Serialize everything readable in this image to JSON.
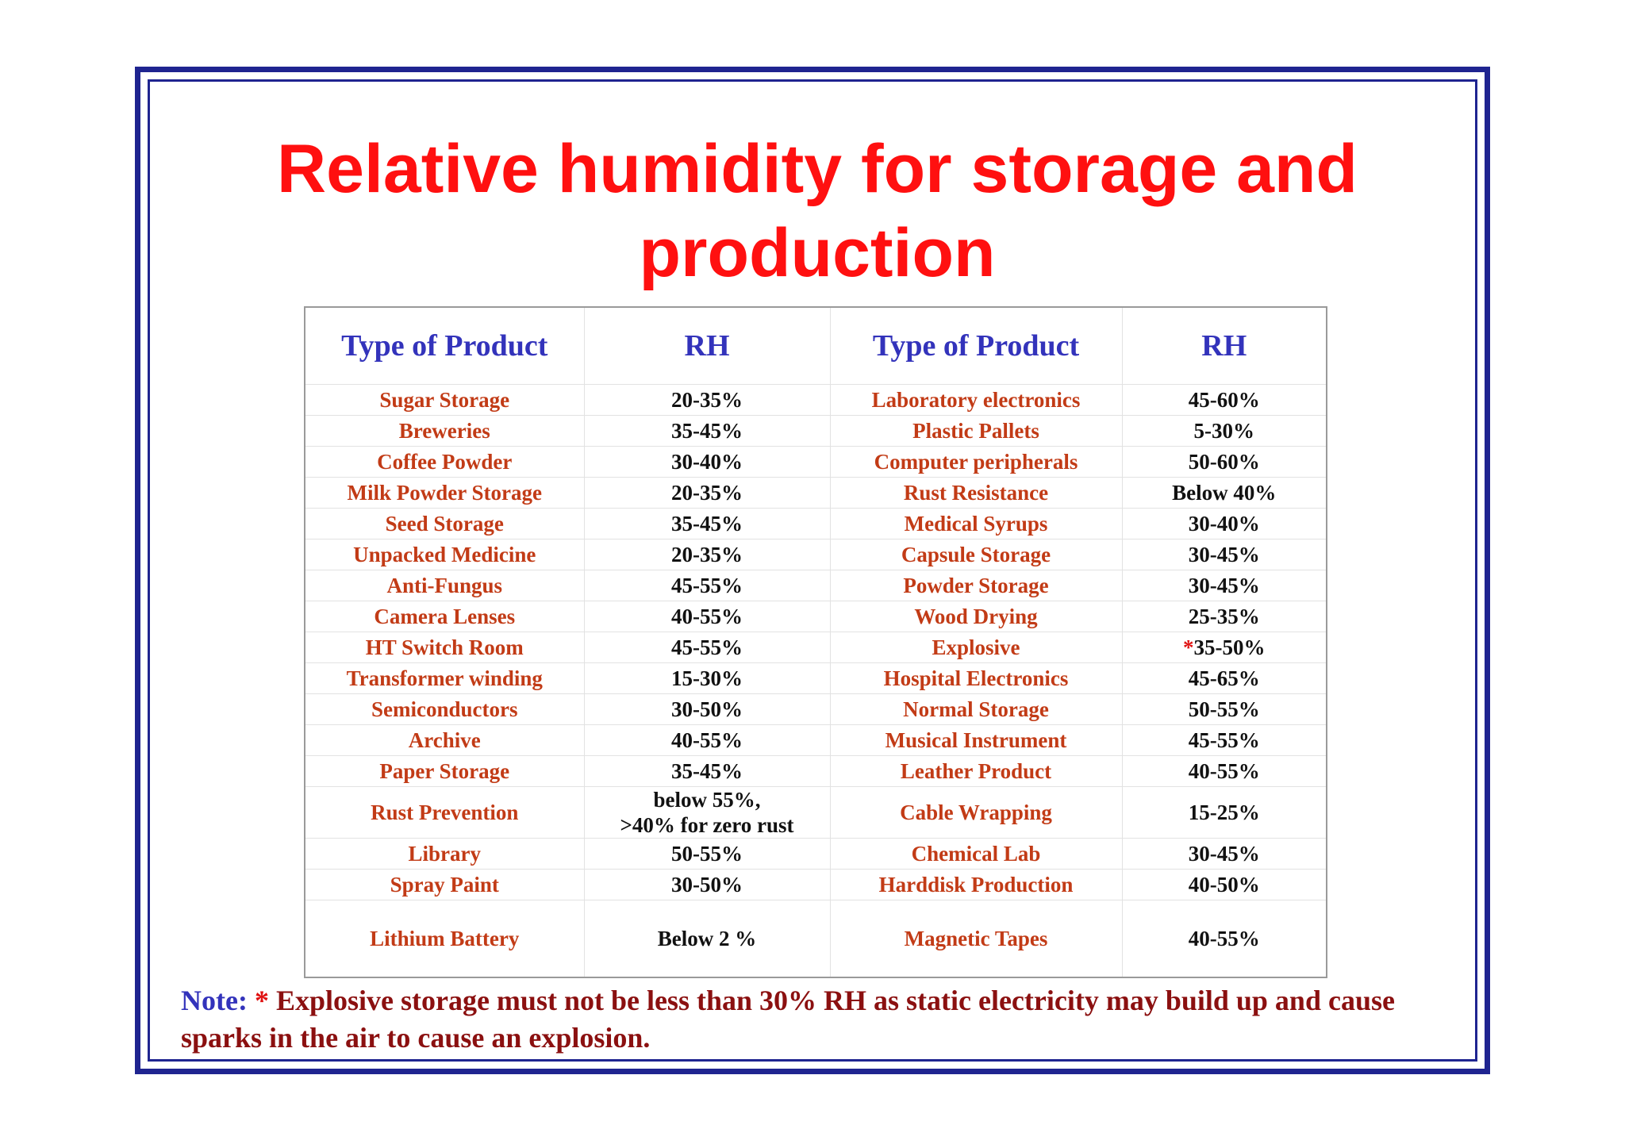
{
  "title": "Relative humidity for storage and production",
  "headers": [
    "Type of Product",
    "RH",
    "Type of Product",
    "RH"
  ],
  "rows": [
    {
      "p1": "Sugar Storage",
      "rh1": "20-35%",
      "p2": "Laboratory electronics",
      "rh2_star": "",
      "rh2": "45-60%"
    },
    {
      "p1": "Breweries",
      "rh1": "35-45%",
      "p2": "Plastic Pallets",
      "rh2_star": "",
      "rh2": "5-30%"
    },
    {
      "p1": "Coffee Powder",
      "rh1": "30-40%",
      "p2": "Computer peripherals",
      "rh2_star": "",
      "rh2": "50-60%"
    },
    {
      "p1": "Milk Powder Storage",
      "rh1": "20-35%",
      "p2": "Rust Resistance",
      "rh2_star": "",
      "rh2": "Below 40%"
    },
    {
      "p1": "Seed Storage",
      "rh1": "35-45%",
      "p2": "Medical Syrups",
      "rh2_star": "",
      "rh2": "30-40%"
    },
    {
      "p1": "Unpacked Medicine",
      "rh1": "20-35%",
      "p2": "Capsule Storage",
      "rh2_star": "",
      "rh2": "30-45%"
    },
    {
      "p1": "Anti-Fungus",
      "rh1": "45-55%",
      "p2": "Powder Storage",
      "rh2_star": "",
      "rh2": "30-45%"
    },
    {
      "p1": "Camera Lenses",
      "rh1": "40-55%",
      "p2": "Wood Drying",
      "rh2_star": "",
      "rh2": "25-35%"
    },
    {
      "p1": "HT Switch Room",
      "rh1": "45-55%",
      "p2": "Explosive",
      "rh2_star": "*",
      "rh2": "35-50%"
    },
    {
      "p1": "Transformer winding",
      "rh1": "15-30%",
      "p2": "Hospital Electronics",
      "rh2_star": "",
      "rh2": "45-65%"
    },
    {
      "p1": "Semiconductors",
      "rh1": "30-50%",
      "p2": "Normal Storage",
      "rh2_star": "",
      "rh2": "50-55%"
    },
    {
      "p1": "Archive",
      "rh1": "40-55%",
      "p2": "Musical Instrument",
      "rh2_star": "",
      "rh2": "45-55%"
    },
    {
      "p1": "Paper Storage",
      "rh1": "35-45%",
      "p2": "Leather Product",
      "rh2_star": "",
      "rh2": "40-55%"
    },
    {
      "p1": "Rust Prevention",
      "rh1": "below 55%,",
      "rh1_line2": ">40% for zero rust",
      "p2": "Cable Wrapping",
      "rh2_star": "",
      "rh2": "15-25%"
    },
    {
      "p1": "Library",
      "rh1": "50-55%",
      "p2": "Chemical Lab",
      "rh2_star": "",
      "rh2": "30-45%"
    },
    {
      "p1": "Spray Paint",
      "rh1": "30-50%",
      "p2": "Harddisk Production",
      "rh2_star": "",
      "rh2": "40-50%"
    },
    {
      "p1": "Lithium Battery",
      "rh1": "Below 2 %",
      "p2": "Magnetic Tapes",
      "rh2_star": "",
      "rh2": "40-55%"
    }
  ],
  "note": {
    "label": "Note:",
    "star": "*",
    "text": "Explosive storage must not be less than 30% RH as static electricity may build up and cause sparks in the air to cause an explosion."
  },
  "colors": {
    "title": "#ff1010",
    "header": "#3333bb",
    "product": "#c23b16",
    "value": "#111111",
    "note": "#8b1010",
    "frame": "#1f2490"
  }
}
